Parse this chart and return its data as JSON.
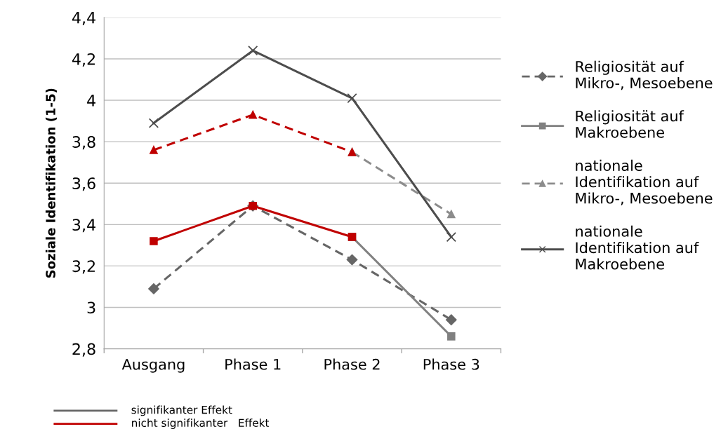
{
  "chart_data": {
    "type": "line",
    "ylabel": "Soziale Identifikation (1-5)",
    "categories": [
      "Ausgang",
      "Phase 1",
      "Phase 2",
      "Phase 3"
    ],
    "series": [
      {
        "name": "Religiosität auf Mikro-, Mesoebene",
        "color": "#666666",
        "marker": "diamond",
        "line_style": "dashed",
        "values": [
          3.09,
          3.49,
          3.23,
          2.94
        ]
      },
      {
        "name": "Religiosität auf Makroebene",
        "color": "#808080",
        "marker": "square",
        "line_style": "solid",
        "values": [
          null,
          null,
          3.34,
          2.86
        ]
      },
      {
        "name": "nationale Identifikation auf Mikro-, Mesoebene",
        "color": "#8c8c8c",
        "marker": "triangle",
        "line_style": "dashed",
        "values": [
          null,
          null,
          3.75,
          3.45
        ]
      },
      {
        "name": "nationale Identifikation auf Makroebene",
        "color": "#4d4d4d",
        "marker": "cross",
        "line_style": "solid",
        "values": [
          3.89,
          4.24,
          4.01,
          3.34
        ]
      },
      {
        "color": "#c00000",
        "marker": "square",
        "line_style": "solid",
        "values": [
          3.32,
          3.49,
          3.34,
          null
        ]
      },
      {
        "color": "#c00000",
        "marker": "triangle",
        "line_style": "dashed",
        "values": [
          3.76,
          3.93,
          3.75,
          null
        ]
      }
    ],
    "annotations": [
      "signifikanter Effekt",
      "nicht signifikanter   Effekt"
    ],
    "ylim": [
      2.8,
      4.4
    ],
    "yticks": [
      {
        "value": 2.8,
        "label": "2,8"
      },
      3,
      {
        "value": 3.2,
        "label": "3,2"
      },
      {
        "value": 3.4,
        "label": "3,4"
      },
      {
        "value": 3.6,
        "label": "3,6"
      },
      {
        "value": 3.8,
        "label": "3,8"
      },
      4,
      {
        "value": 4.2,
        "label": "4,2"
      },
      {
        "value": 4.4,
        "label": "4,4"
      }
    ],
    "grid": "y",
    "legend": "right"
  }
}
